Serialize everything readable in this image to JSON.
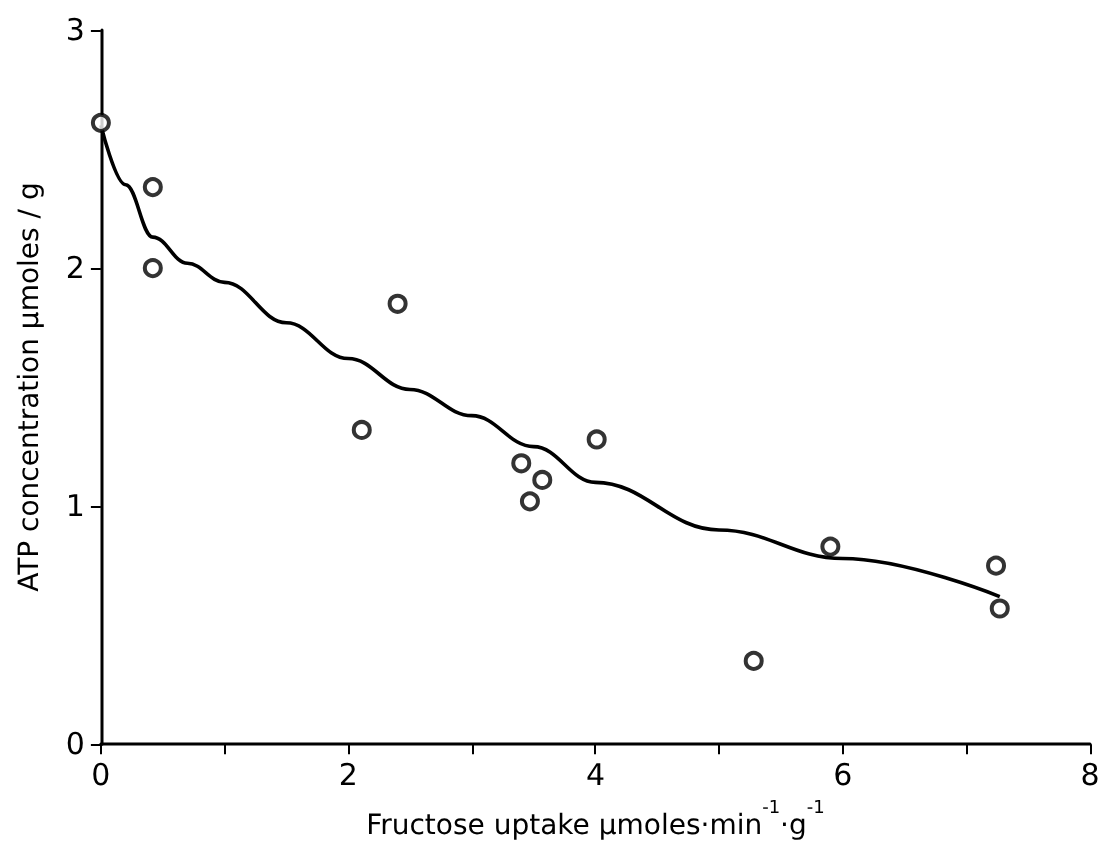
{
  "chart_data": {
    "type": "scatter",
    "xlabel": "Fructose uptake µmoles·min$^{-1}$·g$^{-1}$",
    "ylabel": "ATP concentration µmoles / g",
    "xlim": [
      0,
      8
    ],
    "ylim": [
      0,
      3
    ],
    "xticks": [
      0,
      {
        "value": 1,
        "label": null
      },
      2,
      {
        "value": 3,
        "label": null
      },
      4,
      {
        "value": 5,
        "label": null
      },
      6,
      {
        "value": 7,
        "label": null
      },
      8
    ],
    "yticks": [
      0,
      1,
      2,
      3
    ],
    "grid": false,
    "marker": "circle",
    "series": [
      {
        "color": "#000000",
        "x": [
          0,
          0.42,
          0.42,
          2.4,
          2.11,
          3.4,
          3.47,
          3.57,
          4.01,
          5.28,
          5.9,
          7.24,
          7.27
        ],
        "values": [
          2.61,
          2.34,
          2.0,
          1.85,
          1.32,
          1.18,
          1.02,
          1.11,
          1.28,
          0.35,
          0.83,
          0.75,
          0.57
        ]
      },
      {
        "type": "line",
        "color": "#000000",
        "marker": "none",
        "line_style": "solid",
        "x": [
          0,
          0.2,
          0.42,
          0.7,
          1,
          1.5,
          2,
          2.5,
          3,
          3.5,
          4,
          5,
          6,
          7.27
        ],
        "values": [
          2.6,
          2.35,
          2.13,
          2.02,
          1.94,
          1.77,
          1.62,
          1.49,
          1.38,
          1.25,
          1.1,
          0.9,
          0.78,
          0.62
        ]
      }
    ]
  }
}
